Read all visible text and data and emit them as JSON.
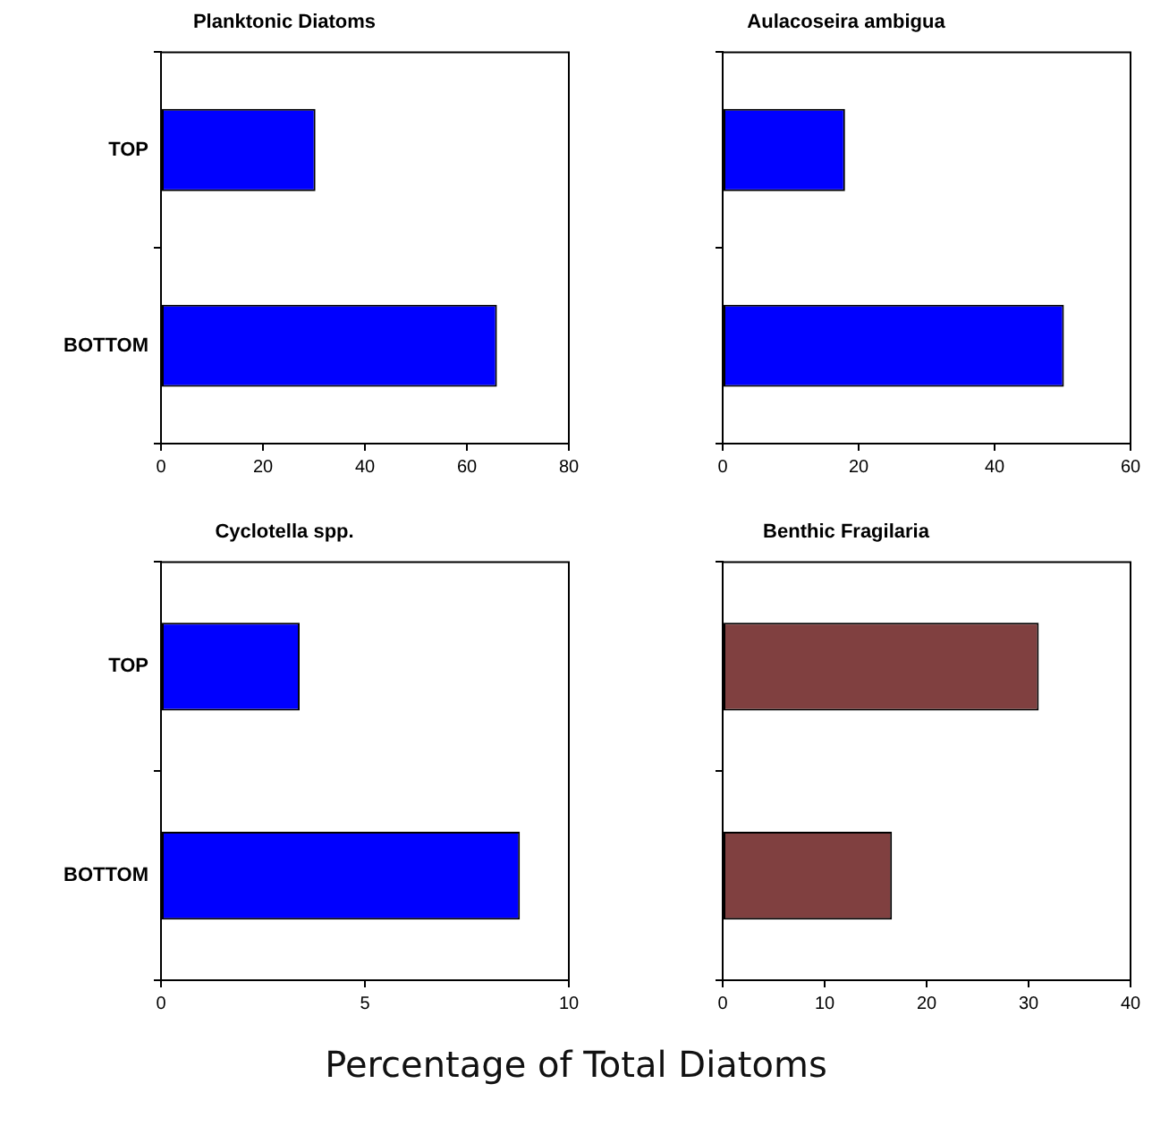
{
  "chart_data": [
    {
      "type": "bar",
      "orientation": "horizontal",
      "title": "Planktonic Diatoms",
      "categories": [
        "TOP",
        "BOTTOM"
      ],
      "values": [
        30.3,
        65.9
      ],
      "color": "#0000ff",
      "xlim": [
        0,
        80
      ],
      "xticks": [
        0,
        20,
        40,
        60,
        80
      ],
      "grid": false
    },
    {
      "type": "bar",
      "orientation": "horizontal",
      "title": "Aulacoseira ambigua",
      "categories": [
        null,
        null
      ],
      "values": [
        18.0,
        50.2
      ],
      "color": "#0000ff",
      "xlim": [
        0,
        60
      ],
      "xticks": [
        0,
        20,
        40,
        60
      ],
      "grid": false
    },
    {
      "type": "bar",
      "orientation": "horizontal",
      "title": "Cyclotella spp.",
      "categories": [
        "TOP",
        "BOTTOM"
      ],
      "values": [
        3.4,
        8.8
      ],
      "color": "#0000ff",
      "xlim": [
        0,
        10
      ],
      "xticks": [
        0,
        5,
        10
      ],
      "grid": false,
      "xlabel": "Percentage of Total Diatoms"
    },
    {
      "type": "bar",
      "orientation": "horizontal",
      "title": "Benthic Fragilaria",
      "categories": [
        null,
        null
      ],
      "values": [
        31.0,
        16.6
      ],
      "color": "#804040",
      "xlim": [
        0,
        40
      ],
      "xticks": [
        0,
        10,
        20,
        30,
        40
      ],
      "grid": false
    }
  ]
}
